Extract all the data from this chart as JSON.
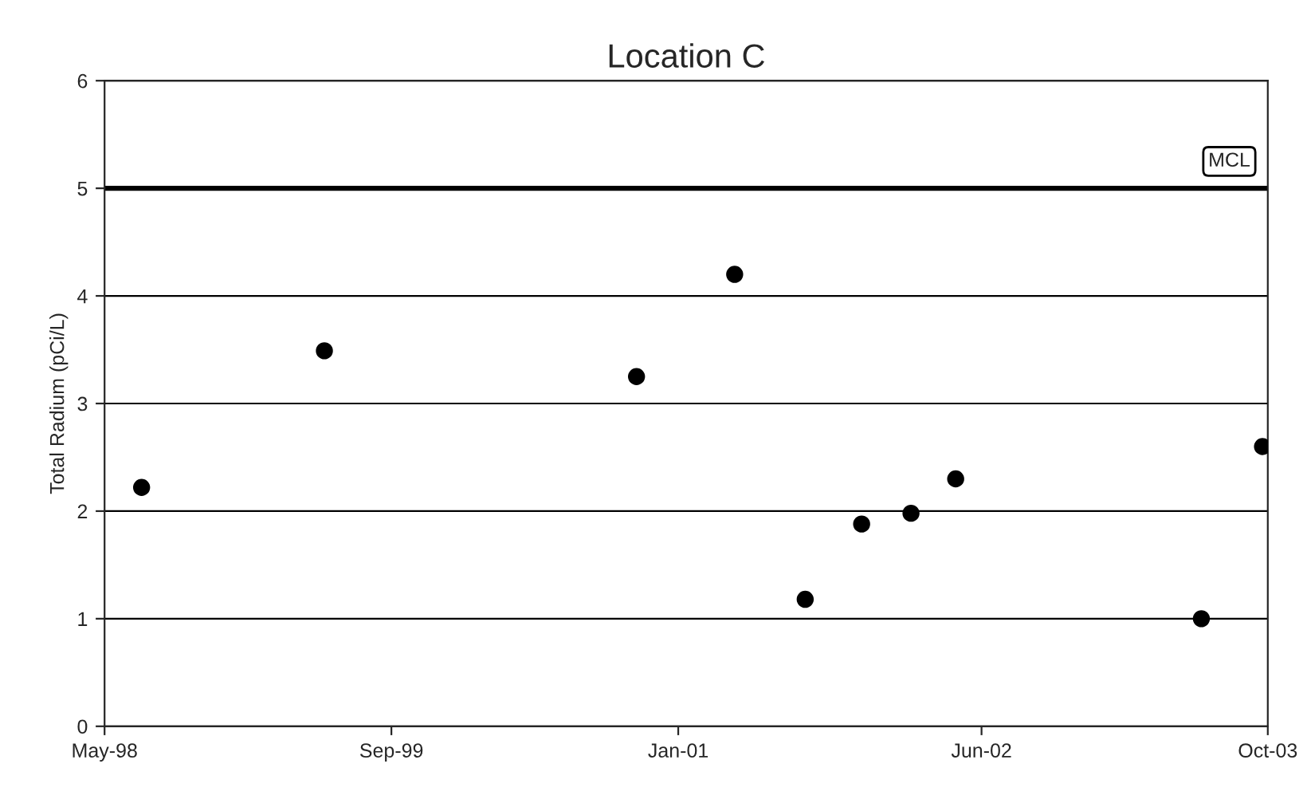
{
  "chart_data": {
    "type": "scatter",
    "title": "Location C",
    "ylabel": "Total Radium (pCi/L)",
    "x": [
      "1998-07-03",
      "1999-05-10",
      "2000-10-22",
      "2001-04-07",
      "2001-08-05",
      "2001-11-09",
      "2002-02-01",
      "2002-04-18",
      "2003-06-10",
      "2003-09-22"
    ],
    "values": [
      2.22,
      3.49,
      3.25,
      4.2,
      1.18,
      1.88,
      1.98,
      2.3,
      1.0,
      2.6
    ],
    "color": "#000000",
    "marker": "circle",
    "xlim": [
      "1998-05-01",
      "2003-10-01"
    ],
    "xticks": [
      {
        "value": "1998-05-01",
        "label": "May-98"
      },
      {
        "value": "1999-09-01",
        "label": "Sep-99"
      },
      {
        "value": "2001-01-01",
        "label": "Jan-01"
      },
      {
        "value": "2002-06-01",
        "label": "Jun-02"
      },
      {
        "value": "2003-10-01",
        "label": "Oct-03"
      }
    ],
    "ylim": [
      0,
      6
    ],
    "yticks": [
      0,
      1,
      2,
      3,
      4,
      5,
      6
    ],
    "grid": "y",
    "ref_lines": [
      {
        "axis": "y",
        "value": 5,
        "label": "MCL",
        "color": "#000000"
      }
    ]
  }
}
